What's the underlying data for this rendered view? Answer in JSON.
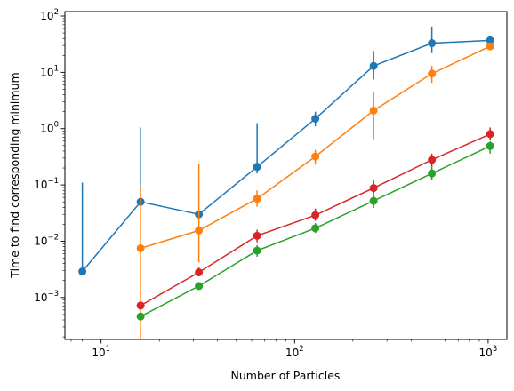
{
  "chart_data": {
    "type": "line",
    "title": "",
    "xlabel": "Number of Particles",
    "ylabel": "Time to find corresponding minimum",
    "xscale": "log",
    "yscale": "log",
    "xlim": [
      6.5,
      1250
    ],
    "ylim": [
      0.00018,
      120
    ],
    "grid": false,
    "legend": "none",
    "x_ticks": [
      {
        "value": 10,
        "base": "10",
        "exp": "1"
      },
      {
        "value": 100,
        "base": "10",
        "exp": "2"
      },
      {
        "value": 1000,
        "base": "10",
        "exp": "3"
      }
    ],
    "y_ticks": [
      {
        "value": 0.001,
        "base": "10",
        "exp": "−3"
      },
      {
        "value": 0.01,
        "base": "10",
        "exp": "−2"
      },
      {
        "value": 0.1,
        "base": "10",
        "exp": "−1"
      },
      {
        "value": 1,
        "base": "10",
        "exp": "0"
      },
      {
        "value": 10,
        "base": "10",
        "exp": "1"
      },
      {
        "value": 100,
        "base": "10",
        "exp": "2"
      }
    ],
    "series": [
      {
        "color": "#1f77b4",
        "points": [
          {
            "x": 8,
            "y": 0.0029,
            "lo": 0.0029,
            "hi": 0.11
          },
          {
            "x": 16,
            "y": 0.05,
            "lo": 0.05,
            "hi": 1.05
          },
          {
            "x": 32,
            "y": 0.03,
            "lo": 0.03,
            "hi": 0.03
          },
          {
            "x": 64,
            "y": 0.21,
            "lo": 0.16,
            "hi": 1.25
          },
          {
            "x": 128,
            "y": 1.5,
            "lo": 1.1,
            "hi": 2.0
          },
          {
            "x": 256,
            "y": 13,
            "lo": 7.5,
            "hi": 24
          },
          {
            "x": 512,
            "y": 33,
            "lo": 22,
            "hi": 65
          },
          {
            "x": 1024,
            "y": 37,
            "lo": 30,
            "hi": 44
          }
        ]
      },
      {
        "color": "#ff7f0e",
        "points": [
          {
            "x": 16,
            "y": 0.0075,
            "lo": 0.00018,
            "hi": 0.1
          },
          {
            "x": 32,
            "y": 0.0155,
            "lo": 0.0042,
            "hi": 0.24
          },
          {
            "x": 64,
            "y": 0.057,
            "lo": 0.041,
            "hi": 0.08
          },
          {
            "x": 128,
            "y": 0.32,
            "lo": 0.23,
            "hi": 0.42
          },
          {
            "x": 256,
            "y": 2.1,
            "lo": 0.65,
            "hi": 4.5
          },
          {
            "x": 512,
            "y": 9.5,
            "lo": 6.5,
            "hi": 13
          },
          {
            "x": 1024,
            "y": 29,
            "lo": 26,
            "hi": 32
          }
        ]
      },
      {
        "color": "#2ca02c",
        "points": [
          {
            "x": 16,
            "y": 0.00046,
            "lo": 0.00042,
            "hi": 0.0005
          },
          {
            "x": 32,
            "y": 0.0016,
            "lo": 0.0014,
            "hi": 0.0018
          },
          {
            "x": 64,
            "y": 0.0068,
            "lo": 0.0053,
            "hi": 0.0085
          },
          {
            "x": 128,
            "y": 0.017,
            "lo": 0.014,
            "hi": 0.021
          },
          {
            "x": 256,
            "y": 0.052,
            "lo": 0.039,
            "hi": 0.066
          },
          {
            "x": 512,
            "y": 0.16,
            "lo": 0.12,
            "hi": 0.21
          },
          {
            "x": 1024,
            "y": 0.49,
            "lo": 0.36,
            "hi": 0.6
          }
        ]
      },
      {
        "color": "#d62728",
        "points": [
          {
            "x": 16,
            "y": 0.00072,
            "lo": 0.00064,
            "hi": 0.0008
          },
          {
            "x": 32,
            "y": 0.0028,
            "lo": 0.0024,
            "hi": 0.0034
          },
          {
            "x": 64,
            "y": 0.0125,
            "lo": 0.0096,
            "hi": 0.016
          },
          {
            "x": 128,
            "y": 0.029,
            "lo": 0.023,
            "hi": 0.038
          },
          {
            "x": 256,
            "y": 0.088,
            "lo": 0.068,
            "hi": 0.12
          },
          {
            "x": 512,
            "y": 0.28,
            "lo": 0.21,
            "hi": 0.36
          },
          {
            "x": 1024,
            "y": 0.8,
            "lo": 0.62,
            "hi": 1.05
          }
        ]
      }
    ]
  }
}
